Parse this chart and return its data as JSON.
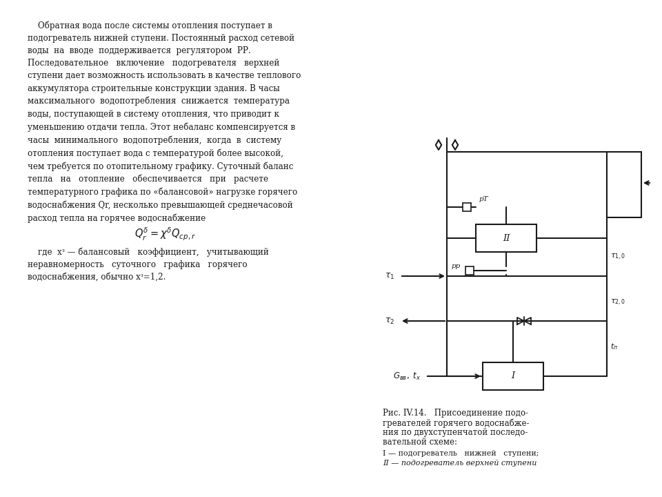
{
  "bg_color": "#ffffff",
  "text_color": "#1a1a1a",
  "main_text": "    Обратная вода после системы отопления поступает в\nподогреватель нижней ступени. Постоянный расход сетевой\nводы  на  вводе  поддерживается  регулятором  РР.\nПоследовательное   включение   подогревателя   верхней\nступени дает возможность использовать в качестве теплового\nаккумулятора строительные конструкции здания. В часы\nмаксимального  водопотребления  снижается  температура\nводы, поступающей в систему отопления, что приводит к\nуменьшению отдачи тепла. Этот небаланс компенсируется в\nчасы  минимального  водопотребления,  когда  в  систему\nотопления поступает вода с температурой более высокой,\nчем требуется по отопительному графику. Суточный баланс\nтепла   на   отопление   обеспечивается   при   расчете\nтемпературного графика по «балансовой» нагрузке горячего\nводоснабжения Qr, несколько превышающей среднечасовой\nрасход тепла на горячее водоснабжение",
  "formula": "$Q^{\\delta}_{r} = \\chi^{\\delta} Q_{cp,r}$",
  "caption_text": "    где  хᶟ — балансовый   коэффициент,   учитывающий\nнеравномерность   суточного   графика   горячего\nводоснабжения, обычно хᶟ=1,2.",
  "fig_caption_line1": "Рис. IV.14.   Присоединение подо-",
  "fig_caption_line2": "гревателей горячего водоснабже-",
  "fig_caption_line3": "ния по двухступенчатой последо-",
  "fig_caption_line4": "вательной схеме:",
  "fig_legend1": "I — подогреватель   нижней   ступени;",
  "fig_legend2": "II — подогреватель верхней ступени"
}
